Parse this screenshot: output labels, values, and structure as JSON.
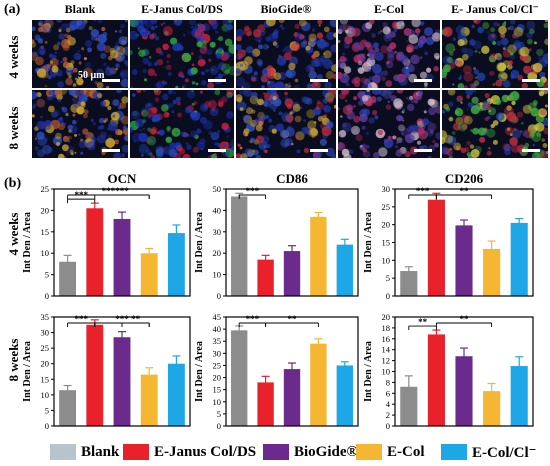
{
  "panel_a": {
    "letter": "(a)",
    "columns": [
      "Blank",
      "E-Janus Col/DS",
      "BioGide®",
      "E-Col",
      "E- Janus Col/Cl⁻"
    ],
    "rows": [
      "4 weeks",
      "8 weeks"
    ],
    "scale_bar_label": "50 μm"
  },
  "panel_b": {
    "letter": "(b)"
  },
  "legend": {
    "items": [
      {
        "label": "Blank",
        "color": "#b8c4cc"
      },
      {
        "label": "E-Janus Col/DS",
        "color": "#e8212b"
      },
      {
        "label": "BioGide®",
        "color": "#6a2b8c"
      },
      {
        "label": "E-Col",
        "color": "#f5b731"
      },
      {
        "label": "E-Col/Cl⁻",
        "color": "#1ea7e6"
      }
    ]
  },
  "colors": {
    "bars": [
      "#8c8c8c",
      "#e8212b",
      "#6a2b8c",
      "#f5b731",
      "#1ea7e6"
    ]
  },
  "chart_data": [
    {
      "type": "bar",
      "title": "OCN",
      "row": "4 weeks",
      "ylabel": "Int Den / Area",
      "ylim": [
        0,
        25
      ],
      "yticks": [
        0,
        5,
        10,
        15,
        20,
        25
      ],
      "categories": [
        "Blank",
        "E-Janus Col/DS",
        "BioGide®",
        "E-Col",
        "E-Col/Cl⁻"
      ],
      "values": [
        8,
        20.5,
        18,
        10,
        14.7
      ],
      "errors": [
        1.5,
        1.2,
        1.6,
        1.1,
        1.9
      ],
      "annotations": [
        {
          "from": 0,
          "to": 1,
          "label": "***"
        },
        {
          "from": 0,
          "to": 3,
          "label": "***"
        },
        {
          "from": 1,
          "to": 3,
          "label": "***"
        }
      ]
    },
    {
      "type": "bar",
      "title": "CD86",
      "row": "4 weeks",
      "ylabel": "Int Den / Area",
      "ylim": [
        0,
        50
      ],
      "yticks": [
        0,
        10,
        20,
        30,
        40,
        50
      ],
      "categories": [
        "Blank",
        "E-Janus Col/DS",
        "BioGide®",
        "E-Col",
        "E-Col/Cl⁻"
      ],
      "values": [
        46.5,
        17,
        21,
        37,
        24
      ],
      "errors": [
        1.5,
        2,
        2.5,
        2,
        2.5
      ],
      "annotations": [
        {
          "from": 0,
          "to": 1,
          "label": "***"
        }
      ]
    },
    {
      "type": "bar",
      "title": "CD206",
      "row": "4 weeks",
      "ylabel": "Int Den / Area",
      "ylim": [
        0,
        30
      ],
      "yticks": [
        0,
        5,
        10,
        15,
        20,
        25,
        30
      ],
      "categories": [
        "Blank",
        "E-Janus Col/DS",
        "BioGide®",
        "E-Col",
        "E-Col/Cl⁻"
      ],
      "values": [
        7,
        27,
        19.8,
        13.2,
        20.5
      ],
      "errors": [
        1.2,
        1.8,
        1.5,
        2.2,
        1.2
      ],
      "annotations": [
        {
          "from": 0,
          "to": 1,
          "label": "***"
        },
        {
          "from": 1,
          "to": 3,
          "label": "**"
        }
      ]
    },
    {
      "type": "bar",
      "title": "",
      "row": "8 weeks",
      "ylabel": "Int Den / Area",
      "ylim": [
        0,
        35
      ],
      "yticks": [
        0,
        5,
        10,
        15,
        20,
        25,
        30,
        35
      ],
      "categories": [
        "Blank",
        "E-Janus Col/DS",
        "BioGide®",
        "E-Col",
        "E-Col/Cl⁻"
      ],
      "values": [
        11.5,
        32.5,
        28.5,
        16.5,
        20
      ],
      "errors": [
        1.5,
        1.6,
        1.8,
        2.2,
        2.5
      ],
      "annotations": [
        {
          "from": 0,
          "to": 1,
          "label": "***"
        },
        {
          "from": 1,
          "to": 3,
          "label": "***"
        },
        {
          "from": 2,
          "to": 3,
          "label": "**"
        }
      ]
    },
    {
      "type": "bar",
      "title": "",
      "row": "8 weeks",
      "ylabel": "Int Den / Area",
      "ylim": [
        0,
        45
      ],
      "yticks": [
        0,
        5,
        10,
        15,
        20,
        25,
        30,
        35,
        40,
        45
      ],
      "categories": [
        "Blank",
        "E-Janus Col/DS",
        "BioGide®",
        "E-Col",
        "E-Col/Cl⁻"
      ],
      "values": [
        39.5,
        18,
        23.5,
        34,
        25
      ],
      "errors": [
        1.8,
        2.5,
        2.5,
        2,
        1.5
      ],
      "annotations": [
        {
          "from": 0,
          "to": 1,
          "label": "***"
        },
        {
          "from": 1,
          "to": 3,
          "label": "**"
        }
      ]
    },
    {
      "type": "bar",
      "title": "",
      "row": "8 weeks",
      "ylabel": "Int Den / Area",
      "ylim": [
        0,
        20
      ],
      "yticks": [
        0,
        2,
        4,
        6,
        8,
        10,
        12,
        14,
        16,
        18,
        20
      ],
      "categories": [
        "Blank",
        "E-Janus Col/DS",
        "BioGide®",
        "E-Col",
        "E-Col/Cl⁻"
      ],
      "values": [
        7.2,
        16.8,
        12.8,
        6.4,
        11
      ],
      "errors": [
        2,
        0.8,
        1.5,
        1.4,
        1.7
      ],
      "annotations": [
        {
          "from": 0,
          "to": 1,
          "label": "**"
        },
        {
          "from": 1,
          "to": 3,
          "label": "**"
        }
      ]
    }
  ]
}
